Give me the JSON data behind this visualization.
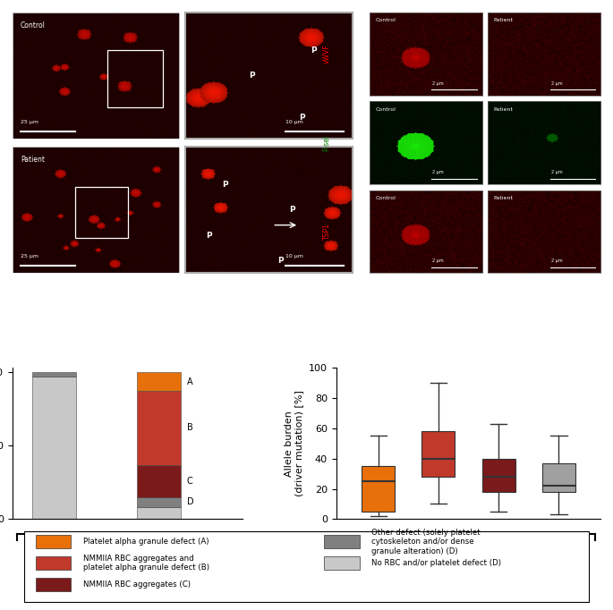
{
  "stacked_bar": {
    "colors": {
      "A_orange": "#E8700A",
      "B_red": "#C0392B",
      "C_dark_red": "#7B1A1A",
      "D_dark_gray": "#808080",
      "light_gray": "#C8C8C8"
    }
  },
  "controls_segments": [
    [
      97,
      "#C8C8C8"
    ],
    [
      3,
      "#808080"
    ]
  ],
  "patients_segments": [
    [
      8,
      "#C8C8C8"
    ],
    [
      7,
      "#808080"
    ],
    [
      22,
      "#7B1A1A"
    ],
    [
      50,
      "#C0392B"
    ],
    [
      13,
      "#E8700A"
    ]
  ],
  "boxplot_data": {
    "A": {
      "whislo": 2,
      "q1": 5,
      "med": 25,
      "q3": 35,
      "whishi": 55
    },
    "B": {
      "whislo": 10,
      "q1": 28,
      "med": 40,
      "q3": 58,
      "whishi": 90
    },
    "C": {
      "whislo": 5,
      "q1": 18,
      "med": 28,
      "q3": 40,
      "whishi": 63
    },
    "D": {
      "whislo": 3,
      "q1": 18,
      "med": 22,
      "q3": 37,
      "whishi": 55
    }
  },
  "boxplot_colors": {
    "A": "#E8700A",
    "B": "#C0392B",
    "C": "#7B1A1A",
    "D": "#A0A0A0"
  },
  "legend": [
    {
      "label": "Platelet alpha granule defect (A)",
      "color": "#E8700A"
    },
    {
      "label": "NMMIIA RBC aggregates and\nplatelet alpha granule defect (B)",
      "color": "#C0392B"
    },
    {
      "label": "NMMIIA RBC aggregates (C)",
      "color": "#7B1A1A"
    },
    {
      "label": "Other defect (solely platelet\ncytoskeleton and/or dense\ngranule alteration) (D)",
      "color": "#808080"
    },
    {
      "label": "No RBC and/or platelet defect (D)",
      "color": "#C8C8C8"
    }
  ],
  "colors": {
    "background": "#ffffff",
    "panel_label": "#000000"
  }
}
